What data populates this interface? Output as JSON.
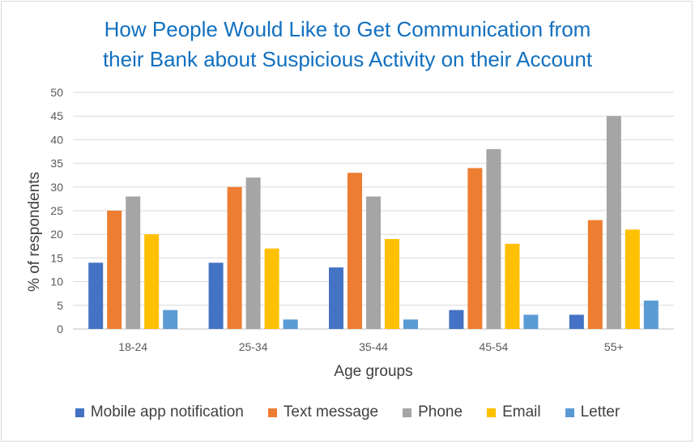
{
  "chart_data": {
    "type": "bar",
    "title_lines": [
      "How People Would Like to Get Communication from",
      "their Bank about Suspicious Activity on their Account"
    ],
    "xlabel": "Age groups",
    "ylabel": "% of respondents",
    "ylim": [
      0,
      50
    ],
    "yticks": [
      "0",
      "5",
      "10",
      "15",
      "20",
      "25",
      "30",
      "35",
      "40",
      "45",
      "50"
    ],
    "grid": true,
    "legend_position": "bottom",
    "categories": [
      "18-24",
      "25-34",
      "35-44",
      "45-54",
      "55+"
    ],
    "series": [
      {
        "name": "Mobile app notification",
        "color": "#4472c4",
        "values": [
          14,
          14,
          13,
          4,
          3
        ]
      },
      {
        "name": "Text message",
        "color": "#ed7d31",
        "values": [
          25,
          30,
          33,
          34,
          23
        ]
      },
      {
        "name": "Phone",
        "color": "#a5a5a5",
        "values": [
          28,
          32,
          28,
          38,
          45
        ]
      },
      {
        "name": "Email",
        "color": "#ffc000",
        "values": [
          20,
          17,
          19,
          18,
          21
        ]
      },
      {
        "name": "Letter",
        "color": "#5b9bd5",
        "values": [
          4,
          2,
          2,
          3,
          6
        ]
      }
    ]
  }
}
